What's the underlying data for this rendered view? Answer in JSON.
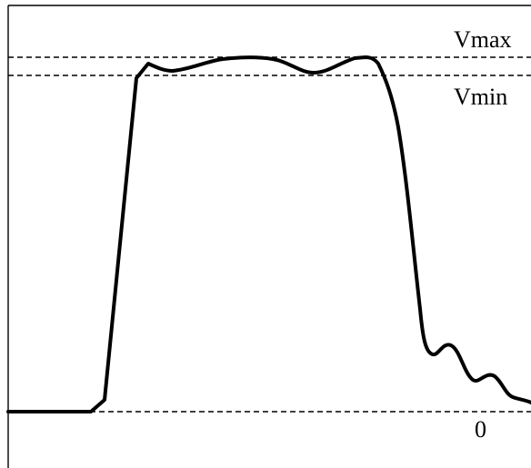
{
  "labels": {
    "vmax": "Vmax",
    "vmin": "Vmin",
    "zero": "0"
  }
}
